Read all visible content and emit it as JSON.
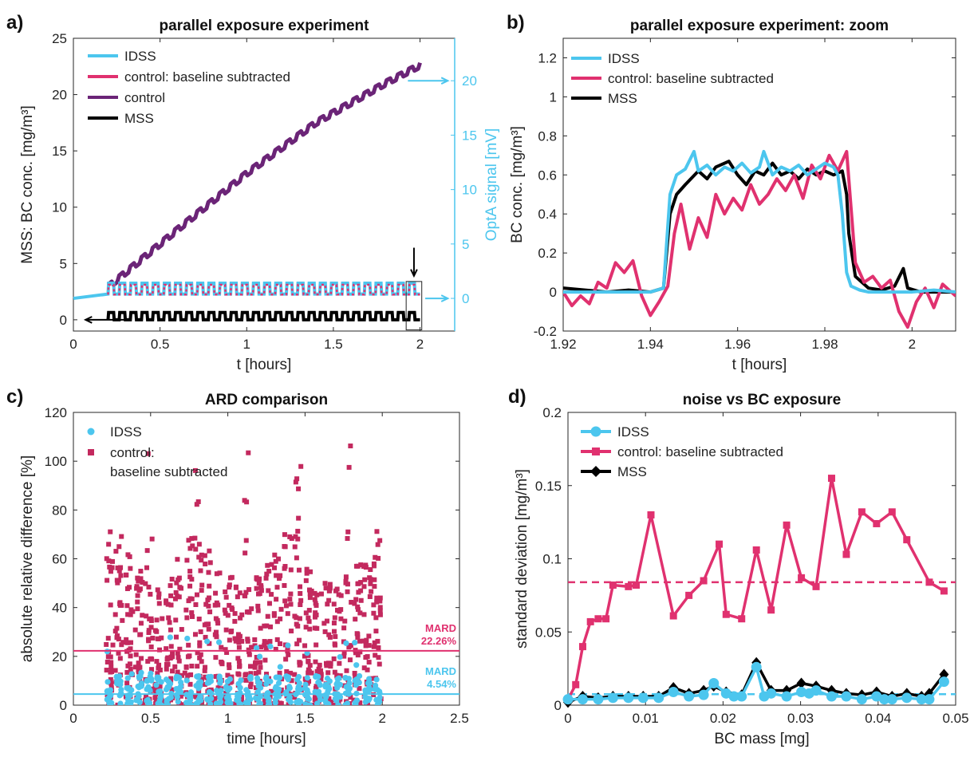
{
  "colors": {
    "idss": "#4cc6ee",
    "control_sub": "#e0316f",
    "control": "#6b2477",
    "mss": "#000000",
    "ard_control": "#c3295e"
  },
  "chart_data": [
    {
      "id": "a",
      "panel_label": "a)",
      "type": "line",
      "title": "parallel exposure experiment",
      "xlabel": "t [hours]",
      "ylabel": "MSS: BC conc. [mg/m³]",
      "y2label": "OptA signal [mV]",
      "xlim": [
        0,
        2.2
      ],
      "ylim": [
        -1,
        25
      ],
      "y2lim": [
        -3,
        23.9
      ],
      "xticks": [
        0,
        0.5,
        1,
        1.5,
        2
      ],
      "yticks": [
        0,
        5,
        10,
        15,
        20,
        25
      ],
      "y2ticks": [
        0,
        5,
        10,
        15,
        20
      ],
      "legend_position": "top-left",
      "series": [
        {
          "name": "IDSS",
          "color": "#4cc6ee",
          "axis": "right",
          "pattern": "square-wave",
          "x": [
            0,
            0.2,
            2.0
          ],
          "y": [
            0,
            0,
            0
          ],
          "amplitude": 1.0,
          "offset": 0.4,
          "cycles": 28
        },
        {
          "name": "control: baseline subtracted",
          "color": "#e0316f",
          "axis": "right",
          "pattern": "square-wave",
          "x": [
            0.2,
            2.0
          ],
          "y": [
            0,
            0
          ],
          "amplitude": 0.9,
          "offset": 0.35,
          "cycles": 28
        },
        {
          "name": "control",
          "color": "#6b2477",
          "axis": "left",
          "pattern": "staircase",
          "x": [
            0.2,
            0.6,
            1.0,
            1.4,
            1.8,
            2.0
          ],
          "y": [
            2.9,
            8.0,
            13.0,
            17.5,
            21.0,
            22.6
          ],
          "ripple": 0.45,
          "cycles": 28
        },
        {
          "name": "MSS",
          "color": "#000000",
          "axis": "left",
          "pattern": "square-wave",
          "x": [
            0.2,
            2.0
          ],
          "y": [
            0,
            0
          ],
          "amplitude": 0.65,
          "offset": 0,
          "cycles": 28
        }
      ],
      "annotations": {
        "right_arrow_1_y2": 20,
        "right_arrow_2_y2": 0,
        "left_arrow_y": 0,
        "zoom_box": [
          1.92,
          2.01,
          -0.9,
          3.4
        ]
      }
    },
    {
      "id": "b",
      "panel_label": "b)",
      "type": "line",
      "title": "parallel exposure experiment: zoom",
      "xlabel": "t [hours]",
      "ylabel": "BC conc. [mg/m³]",
      "xlim": [
        1.92,
        2.01
      ],
      "ylim": [
        -0.2,
        1.3
      ],
      "xticks": [
        1.92,
        1.94,
        1.96,
        1.98,
        2
      ],
      "xtick_labels": [
        "1.92",
        "1.94",
        "1.96",
        "1.98",
        "2"
      ],
      "yticks": [
        -0.2,
        0,
        0.2,
        0.4,
        0.6,
        0.8,
        1,
        1.2
      ],
      "legend_position": "top-left",
      "series": [
        {
          "name": "IDSS",
          "color": "#4cc6ee",
          "x": [
            1.92,
            1.925,
            1.93,
            1.935,
            1.94,
            1.943,
            1.9445,
            1.946,
            1.948,
            1.95,
            1.951,
            1.953,
            1.955,
            1.957,
            1.959,
            1.961,
            1.963,
            1.965,
            1.966,
            1.968,
            1.97,
            1.972,
            1.974,
            1.976,
            1.978,
            1.98,
            1.982,
            1.983,
            1.984,
            1.985,
            1.986,
            1.988,
            1.99,
            1.995,
            2.0,
            2.005,
            2.01
          ],
          "y": [
            0,
            0,
            0,
            0,
            0,
            0.02,
            0.5,
            0.6,
            0.63,
            0.72,
            0.62,
            0.65,
            0.6,
            0.64,
            0.62,
            0.66,
            0.61,
            0.64,
            0.72,
            0.6,
            0.64,
            0.62,
            0.65,
            0.6,
            0.63,
            0.66,
            0.64,
            0.6,
            0.4,
            0.1,
            0.03,
            0.01,
            0,
            0,
            0,
            0.01,
            0
          ]
        },
        {
          "name": "control: baseline subtracted",
          "color": "#e0316f",
          "x": [
            1.92,
            1.922,
            1.924,
            1.926,
            1.928,
            1.93,
            1.932,
            1.934,
            1.936,
            1.938,
            1.94,
            1.942,
            1.944,
            1.9455,
            1.947,
            1.949,
            1.951,
            1.953,
            1.955,
            1.957,
            1.959,
            1.961,
            1.963,
            1.965,
            1.967,
            1.969,
            1.971,
            1.973,
            1.975,
            1.977,
            1.979,
            1.981,
            1.983,
            1.985,
            1.987,
            1.989,
            1.991,
            1.993,
            1.995,
            1.997,
            1.999,
            2.001,
            2.003,
            2.005,
            2.007,
            2.009,
            2.01
          ],
          "y": [
            0,
            -0.07,
            -0.02,
            -0.06,
            0.05,
            0.02,
            0.15,
            0.1,
            0.16,
            -0.02,
            -0.12,
            -0.05,
            0.03,
            0.3,
            0.45,
            0.22,
            0.38,
            0.28,
            0.5,
            0.4,
            0.48,
            0.42,
            0.55,
            0.45,
            0.5,
            0.58,
            0.52,
            0.6,
            0.48,
            0.65,
            0.58,
            0.7,
            0.62,
            0.72,
            0.15,
            0.05,
            0.08,
            0.02,
            0.06,
            -0.1,
            -0.18,
            -0.05,
            0.02,
            -0.08,
            0.04,
            0.0,
            -0.02
          ]
        },
        {
          "name": "MSS",
          "color": "#000000",
          "x": [
            1.92,
            1.925,
            1.93,
            1.935,
            1.94,
            1.943,
            1.9445,
            1.946,
            1.948,
            1.951,
            1.953,
            1.955,
            1.958,
            1.96,
            1.962,
            1.964,
            1.966,
            1.968,
            1.97,
            1.972,
            1.974,
            1.976,
            1.978,
            1.98,
            1.982,
            1.984,
            1.985,
            1.9855,
            1.987,
            1.99,
            1.993,
            1.996,
            1.998,
            1.999,
            2.002,
            2.006,
            2.01
          ],
          "y": [
            0.02,
            0.01,
            0.0,
            0.01,
            0.0,
            0.02,
            0.4,
            0.5,
            0.55,
            0.62,
            0.58,
            0.64,
            0.67,
            0.6,
            0.55,
            0.62,
            0.6,
            0.66,
            0.6,
            0.62,
            0.58,
            0.63,
            0.6,
            0.62,
            0.6,
            0.62,
            0.5,
            0.3,
            0.08,
            0.02,
            0.01,
            0.03,
            0.12,
            0.02,
            0.0,
            0.0,
            0.0
          ]
        }
      ]
    },
    {
      "id": "c",
      "panel_label": "c)",
      "type": "scatter",
      "title": "ARD comparison",
      "xlabel": "time [hours]",
      "ylabel": "absolute relative difference [%]",
      "xlim": [
        0,
        2.5
      ],
      "ylim": [
        0,
        120
      ],
      "xticks": [
        0,
        0.5,
        1,
        1.5,
        2,
        2.5
      ],
      "yticks": [
        0,
        20,
        40,
        60,
        80,
        100,
        120
      ],
      "legend_position": "top-left",
      "series": [
        {
          "name": "IDSS",
          "color": "#4cc6ee",
          "marker": "circle",
          "x_range": [
            0.2,
            2.0
          ],
          "typical_max": 12,
          "peak_max": 28,
          "count": 380
        },
        {
          "name": "control:",
          "name_line2": "baseline subtracted",
          "color": "#c3295e",
          "marker": "square",
          "x_range": [
            0.2,
            2.0
          ],
          "typical_max": 55,
          "peak_max": 120,
          "count": 900
        }
      ],
      "reference_lines": [
        {
          "y": 22.26,
          "color": "#e0316f",
          "label": "MARD",
          "value_label": "22.26%"
        },
        {
          "y": 4.54,
          "color": "#4cc6ee",
          "label": "MARD",
          "value_label": "4.54%"
        }
      ]
    },
    {
      "id": "d",
      "panel_label": "d)",
      "type": "line",
      "title": "noise vs BC exposure",
      "xlabel": "BC mass [mg]",
      "ylabel": "standard deviation [mg/m³]",
      "xlim": [
        0,
        0.05
      ],
      "ylim": [
        0,
        0.2
      ],
      "xticks": [
        0,
        0.01,
        0.02,
        0.03,
        0.04,
        0.05
      ],
      "yticks": [
        0,
        0.05,
        0.1,
        0.15,
        0.2
      ],
      "legend_position": "top-left",
      "series": [
        {
          "name": "IDSS",
          "color": "#4cc6ee",
          "marker": "circle",
          "x": [
            0.0,
            0.0019,
            0.0039,
            0.0058,
            0.0078,
            0.0097,
            0.0117,
            0.0136,
            0.0156,
            0.0175,
            0.0188,
            0.0204,
            0.0214,
            0.0224,
            0.0243,
            0.0253,
            0.0262,
            0.0282,
            0.0301,
            0.0311,
            0.032,
            0.034,
            0.0359,
            0.0379,
            0.0398,
            0.0408,
            0.0418,
            0.0437,
            0.0456,
            0.0466,
            0.0485
          ],
          "y": [
            0.004,
            0.004,
            0.004,
            0.005,
            0.005,
            0.005,
            0.005,
            0.009,
            0.006,
            0.007,
            0.015,
            0.008,
            0.006,
            0.006,
            0.026,
            0.006,
            0.008,
            0.006,
            0.009,
            0.008,
            0.01,
            0.006,
            0.006,
            0.004,
            0.006,
            0.004,
            0.004,
            0.005,
            0.004,
            0.004,
            0.016
          ]
        },
        {
          "name": "control: baseline subtracted",
          "color": "#e0316f",
          "marker": "square",
          "x": [
            0.0,
            0.001,
            0.0019,
            0.0029,
            0.0039,
            0.0049,
            0.0058,
            0.0078,
            0.0088,
            0.0107,
            0.0136,
            0.0156,
            0.0175,
            0.0195,
            0.0204,
            0.0224,
            0.0243,
            0.0262,
            0.0282,
            0.0301,
            0.032,
            0.034,
            0.0359,
            0.0379,
            0.0398,
            0.0418,
            0.0437,
            0.0466,
            0.0485
          ],
          "y": [
            0.004,
            0.014,
            0.04,
            0.057,
            0.059,
            0.059,
            0.082,
            0.081,
            0.082,
            0.13,
            0.061,
            0.075,
            0.085,
            0.11,
            0.062,
            0.059,
            0.106,
            0.065,
            0.123,
            0.087,
            0.081,
            0.155,
            0.103,
            0.132,
            0.124,
            0.132,
            0.113,
            0.084,
            0.078
          ]
        },
        {
          "name": "MSS",
          "color": "#000000",
          "marker": "diamond",
          "x": [
            0.0,
            0.0019,
            0.0039,
            0.0058,
            0.0078,
            0.0097,
            0.0117,
            0.0136,
            0.0156,
            0.0175,
            0.0188,
            0.0204,
            0.0224,
            0.0243,
            0.0262,
            0.0282,
            0.0301,
            0.032,
            0.034,
            0.0359,
            0.0379,
            0.0398,
            0.0418,
            0.0437,
            0.0456,
            0.0466,
            0.0485
          ],
          "y": [
            0.002,
            0.006,
            0.005,
            0.006,
            0.006,
            0.006,
            0.006,
            0.012,
            0.008,
            0.01,
            0.013,
            0.009,
            0.007,
            0.029,
            0.01,
            0.01,
            0.015,
            0.013,
            0.01,
            0.008,
            0.007,
            0.009,
            0.006,
            0.008,
            0.006,
            0.008,
            0.021
          ]
        }
      ],
      "reference_lines": [
        {
          "y": 0.084,
          "color": "#e0316f",
          "style": "dashed"
        },
        {
          "y": 0.0075,
          "color": "#4cc6ee",
          "style": "dashed"
        }
      ]
    }
  ]
}
